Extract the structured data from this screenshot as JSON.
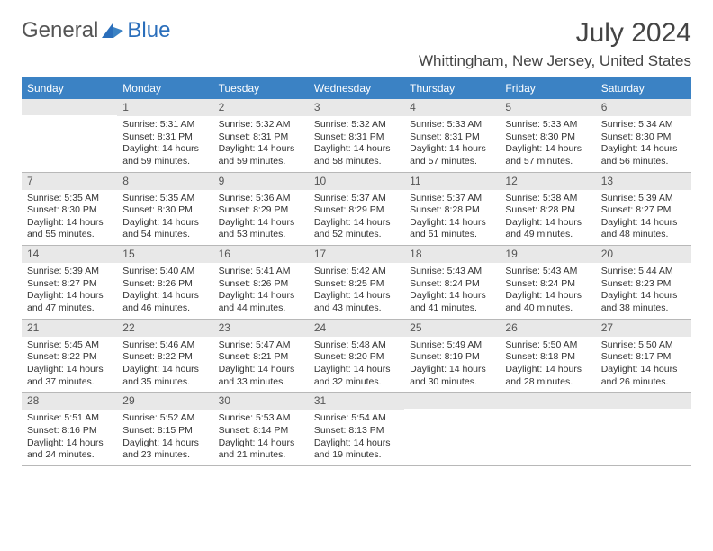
{
  "logo": {
    "part1": "General",
    "part2": "Blue"
  },
  "title": "July 2024",
  "location": "Whittingham, New Jersey, United States",
  "style": {
    "header_bg": "#3b82c4",
    "header_text": "#ffffff",
    "daynum_bg": "#e8e8e8",
    "border_color": "#b8b8b8",
    "page_bg": "#ffffff",
    "body_text": "#333333",
    "title_fontsize": 30,
    "location_fontsize": 17,
    "weekday_fontsize": 12,
    "body_fontsize": 10.5,
    "columns": 7
  },
  "weekdays": [
    "Sunday",
    "Monday",
    "Tuesday",
    "Wednesday",
    "Thursday",
    "Friday",
    "Saturday"
  ],
  "weeks": [
    [
      null,
      {
        "n": "1",
        "sr": "5:31 AM",
        "ss": "8:31 PM",
        "dl": "14 hours and 59 minutes."
      },
      {
        "n": "2",
        "sr": "5:32 AM",
        "ss": "8:31 PM",
        "dl": "14 hours and 59 minutes."
      },
      {
        "n": "3",
        "sr": "5:32 AM",
        "ss": "8:31 PM",
        "dl": "14 hours and 58 minutes."
      },
      {
        "n": "4",
        "sr": "5:33 AM",
        "ss": "8:31 PM",
        "dl": "14 hours and 57 minutes."
      },
      {
        "n": "5",
        "sr": "5:33 AM",
        "ss": "8:30 PM",
        "dl": "14 hours and 57 minutes."
      },
      {
        "n": "6",
        "sr": "5:34 AM",
        "ss": "8:30 PM",
        "dl": "14 hours and 56 minutes."
      }
    ],
    [
      {
        "n": "7",
        "sr": "5:35 AM",
        "ss": "8:30 PM",
        "dl": "14 hours and 55 minutes."
      },
      {
        "n": "8",
        "sr": "5:35 AM",
        "ss": "8:30 PM",
        "dl": "14 hours and 54 minutes."
      },
      {
        "n": "9",
        "sr": "5:36 AM",
        "ss": "8:29 PM",
        "dl": "14 hours and 53 minutes."
      },
      {
        "n": "10",
        "sr": "5:37 AM",
        "ss": "8:29 PM",
        "dl": "14 hours and 52 minutes."
      },
      {
        "n": "11",
        "sr": "5:37 AM",
        "ss": "8:28 PM",
        "dl": "14 hours and 51 minutes."
      },
      {
        "n": "12",
        "sr": "5:38 AM",
        "ss": "8:28 PM",
        "dl": "14 hours and 49 minutes."
      },
      {
        "n": "13",
        "sr": "5:39 AM",
        "ss": "8:27 PM",
        "dl": "14 hours and 48 minutes."
      }
    ],
    [
      {
        "n": "14",
        "sr": "5:39 AM",
        "ss": "8:27 PM",
        "dl": "14 hours and 47 minutes."
      },
      {
        "n": "15",
        "sr": "5:40 AM",
        "ss": "8:26 PM",
        "dl": "14 hours and 46 minutes."
      },
      {
        "n": "16",
        "sr": "5:41 AM",
        "ss": "8:26 PM",
        "dl": "14 hours and 44 minutes."
      },
      {
        "n": "17",
        "sr": "5:42 AM",
        "ss": "8:25 PM",
        "dl": "14 hours and 43 minutes."
      },
      {
        "n": "18",
        "sr": "5:43 AM",
        "ss": "8:24 PM",
        "dl": "14 hours and 41 minutes."
      },
      {
        "n": "19",
        "sr": "5:43 AM",
        "ss": "8:24 PM",
        "dl": "14 hours and 40 minutes."
      },
      {
        "n": "20",
        "sr": "5:44 AM",
        "ss": "8:23 PM",
        "dl": "14 hours and 38 minutes."
      }
    ],
    [
      {
        "n": "21",
        "sr": "5:45 AM",
        "ss": "8:22 PM",
        "dl": "14 hours and 37 minutes."
      },
      {
        "n": "22",
        "sr": "5:46 AM",
        "ss": "8:22 PM",
        "dl": "14 hours and 35 minutes."
      },
      {
        "n": "23",
        "sr": "5:47 AM",
        "ss": "8:21 PM",
        "dl": "14 hours and 33 minutes."
      },
      {
        "n": "24",
        "sr": "5:48 AM",
        "ss": "8:20 PM",
        "dl": "14 hours and 32 minutes."
      },
      {
        "n": "25",
        "sr": "5:49 AM",
        "ss": "8:19 PM",
        "dl": "14 hours and 30 minutes."
      },
      {
        "n": "26",
        "sr": "5:50 AM",
        "ss": "8:18 PM",
        "dl": "14 hours and 28 minutes."
      },
      {
        "n": "27",
        "sr": "5:50 AM",
        "ss": "8:17 PM",
        "dl": "14 hours and 26 minutes."
      }
    ],
    [
      {
        "n": "28",
        "sr": "5:51 AM",
        "ss": "8:16 PM",
        "dl": "14 hours and 24 minutes."
      },
      {
        "n": "29",
        "sr": "5:52 AM",
        "ss": "8:15 PM",
        "dl": "14 hours and 23 minutes."
      },
      {
        "n": "30",
        "sr": "5:53 AM",
        "ss": "8:14 PM",
        "dl": "14 hours and 21 minutes."
      },
      {
        "n": "31",
        "sr": "5:54 AM",
        "ss": "8:13 PM",
        "dl": "14 hours and 19 minutes."
      },
      null,
      null,
      null
    ]
  ],
  "labels": {
    "sunrise": "Sunrise: ",
    "sunset": "Sunset: ",
    "daylight": "Daylight: "
  }
}
